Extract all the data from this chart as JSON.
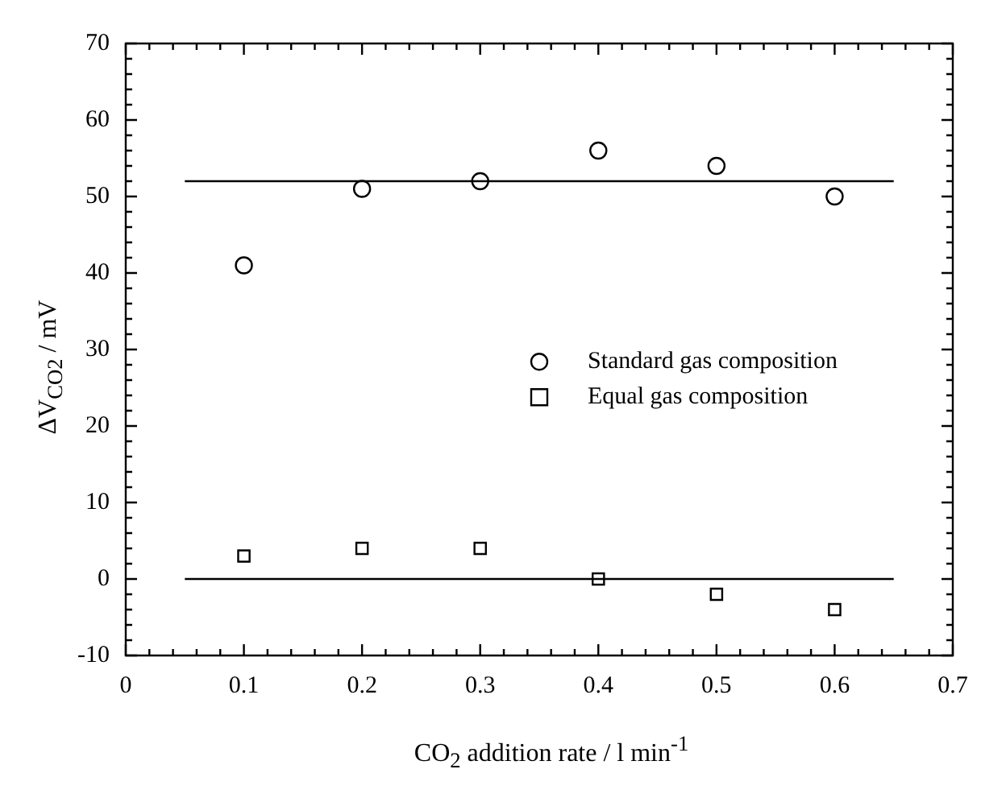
{
  "chart_data": {
    "type": "scatter",
    "xlabel": "CO$_{2}$ addition rate / l min$^{-1}$",
    "ylabel": "ΔV$_{CO2}$ / mV",
    "xlim": [
      0,
      0.7
    ],
    "xticks": [
      0,
      0.1,
      0.2,
      0.3,
      0.4,
      0.5,
      0.6,
      0.7
    ],
    "ylim": [
      -10,
      70
    ],
    "yticks": [
      -10,
      0,
      10,
      20,
      30,
      40,
      50,
      60,
      70
    ],
    "grid": false,
    "legend": "right",
    "series": [
      {
        "name": "Standard gas composition",
        "color": "#000000",
        "marker": "circle",
        "x": [
          0.1,
          0.2,
          0.3,
          0.4,
          0.5,
          0.6
        ],
        "values": [
          41,
          51,
          52,
          56,
          54,
          50
        ]
      },
      {
        "name": "Equal gas composition",
        "color": "#000000",
        "marker": "square",
        "x": [
          0.1,
          0.2,
          0.3,
          0.4,
          0.5,
          0.6
        ],
        "values": [
          3,
          4,
          4,
          0,
          -2,
          -4
        ]
      },
      {
        "type": "line",
        "color": "#000000",
        "marker": "none",
        "x": [
          0.05,
          0.65
        ],
        "values": [
          52,
          52
        ]
      },
      {
        "type": "line",
        "color": "#000000",
        "marker": "none",
        "x": [
          0.05,
          0.65
        ],
        "values": [
          0,
          0
        ]
      }
    ]
  }
}
